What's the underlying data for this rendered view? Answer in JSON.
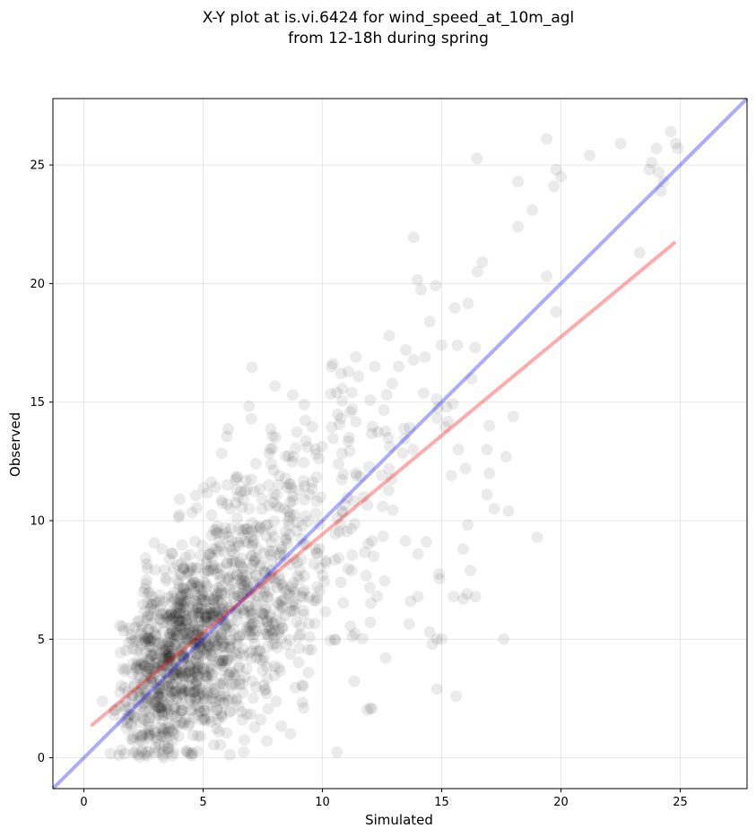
{
  "chart_data": {
    "type": "scatter",
    "title": [
      "X-Y plot at is.vi.6424 for wind_speed_at_10m_agl",
      "from 12-18h during spring"
    ],
    "xlabel": "Simulated",
    "ylabel": "Observed",
    "xlim": [
      -1.3,
      27.8
    ],
    "ylim": [
      -1.3,
      27.8
    ],
    "xticks": [
      0,
      5,
      10,
      15,
      20,
      25
    ],
    "yticks": [
      0,
      5,
      10,
      15,
      20,
      25
    ],
    "grid": true,
    "point_color": "#000000",
    "point_alpha": 0.08,
    "reference_line": {
      "from": [
        -1.3,
        -1.3
      ],
      "to": [
        27.8,
        27.8
      ],
      "color": "#0000ff"
    },
    "fit_line": {
      "from": [
        0.3,
        1.35
      ],
      "to": [
        24.8,
        21.75
      ],
      "color": "#ff0000"
    },
    "points": [
      [
        18.2,
        24.3
      ],
      [
        18.2,
        22.4
      ],
      [
        18.8,
        23.1
      ],
      [
        19.4,
        26.1
      ],
      [
        19.7,
        24.1
      ],
      [
        19.8,
        24.8
      ],
      [
        20.0,
        24.5
      ],
      [
        21.2,
        25.4
      ],
      [
        22.5,
        25.9
      ],
      [
        23.7,
        24.8
      ],
      [
        23.8,
        25.1
      ],
      [
        24.0,
        25.7
      ],
      [
        24.1,
        24.7
      ],
      [
        24.2,
        23.9
      ],
      [
        24.3,
        24.3
      ],
      [
        24.6,
        26.4
      ],
      [
        24.8,
        25.9
      ],
      [
        24.9,
        25.7
      ],
      [
        23.3,
        21.3
      ],
      [
        19.4,
        20.3
      ],
      [
        19.8,
        18.8
      ],
      [
        16.5,
        20.5
      ],
      [
        16.7,
        20.9
      ],
      [
        16.4,
        17.3
      ],
      [
        18.0,
        14.4
      ],
      [
        17.7,
        12.7
      ],
      [
        17.8,
        10.4
      ],
      [
        17.2,
        10.5
      ],
      [
        17.0,
        14.0
      ],
      [
        17.0,
        12.0
      ],
      [
        16.9,
        11.1
      ],
      [
        16.9,
        13.0
      ],
      [
        17.6,
        5.0
      ],
      [
        19.0,
        9.3
      ],
      [
        16.2,
        7.9
      ],
      [
        16.0,
        12.2
      ],
      [
        15.9,
        8.8
      ],
      [
        15.9,
        6.7
      ],
      [
        15.7,
        13.0
      ],
      [
        15.5,
        6.8
      ],
      [
        15.4,
        11.9
      ],
      [
        15.2,
        14.8
      ],
      [
        15.6,
        2.6
      ],
      [
        14.8,
        2.9
      ],
      [
        15.0,
        5.0
      ],
      [
        14.8,
        5.0
      ],
      [
        14.5,
        5.3
      ],
      [
        14.6,
        4.8
      ],
      [
        14.0,
        6.8
      ],
      [
        13.7,
        6.6
      ],
      [
        12.0,
        2.1
      ],
      [
        14.5,
        18.4
      ],
      [
        13.5,
        17.2
      ],
      [
        12.8,
        17.8
      ],
      [
        13.2,
        16.5
      ],
      [
        11.4,
        16.9
      ],
      [
        12.2,
        16.5
      ],
      [
        14.3,
        16.9
      ],
      [
        15.0,
        17.4
      ],
      [
        10.6,
        15.4
      ]
    ]
  }
}
